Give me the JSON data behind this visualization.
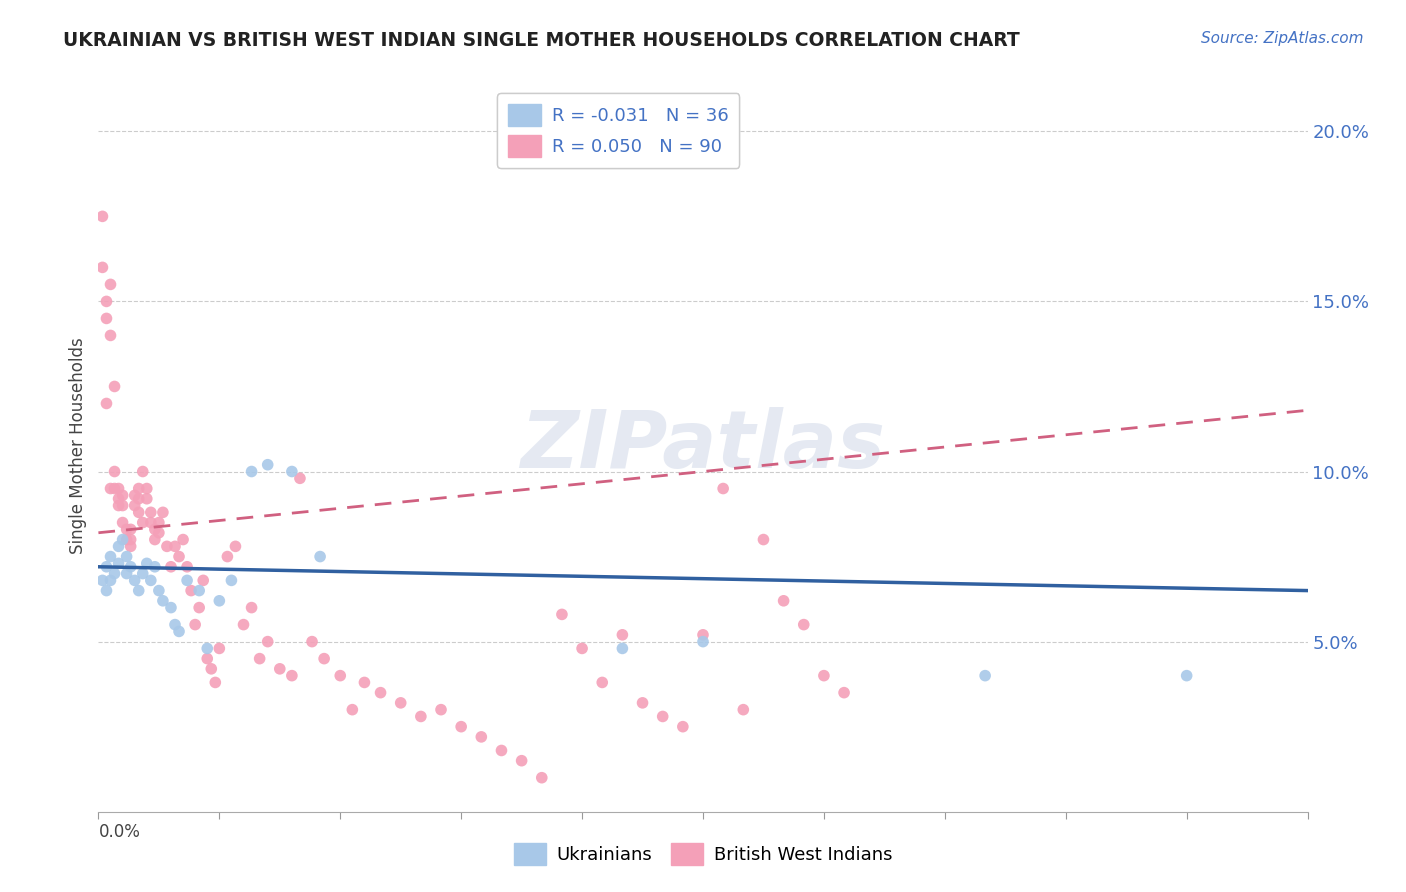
{
  "title": "UKRAINIAN VS BRITISH WEST INDIAN SINGLE MOTHER HOUSEHOLDS CORRELATION CHART",
  "source": "Source: ZipAtlas.com",
  "ylabel": "Single Mother Households",
  "watermark": "ZIPatlas",
  "legend_blue_label": "R = -0.031   N = 36",
  "legend_pink_label": "R = 0.050   N = 90",
  "legend_bottom_blue": "Ukrainians",
  "legend_bottom_pink": "British West Indians",
  "blue_color": "#a8c8e8",
  "pink_color": "#f4a0b8",
  "blue_line_color": "#3060a0",
  "pink_line_color": "#d06080",
  "xlim": [
    0.0,
    0.3
  ],
  "ylim": [
    0.0,
    0.215
  ],
  "right_yticks": [
    0.05,
    0.1,
    0.15,
    0.2
  ],
  "right_yticklabels": [
    "5.0%",
    "10.0%",
    "15.0%",
    "20.0%"
  ],
  "ukrainians_x": [
    0.001,
    0.002,
    0.002,
    0.003,
    0.003,
    0.004,
    0.005,
    0.005,
    0.006,
    0.007,
    0.007,
    0.008,
    0.009,
    0.01,
    0.011,
    0.012,
    0.013,
    0.014,
    0.015,
    0.016,
    0.018,
    0.019,
    0.02,
    0.022,
    0.025,
    0.027,
    0.03,
    0.033,
    0.038,
    0.042,
    0.048,
    0.055,
    0.13,
    0.15,
    0.22,
    0.27
  ],
  "ukrainians_y": [
    0.068,
    0.072,
    0.065,
    0.068,
    0.075,
    0.07,
    0.073,
    0.078,
    0.08,
    0.075,
    0.07,
    0.072,
    0.068,
    0.065,
    0.07,
    0.073,
    0.068,
    0.072,
    0.065,
    0.062,
    0.06,
    0.055,
    0.053,
    0.068,
    0.065,
    0.048,
    0.062,
    0.068,
    0.1,
    0.102,
    0.1,
    0.075,
    0.048,
    0.05,
    0.04,
    0.04
  ],
  "bwi_x": [
    0.001,
    0.001,
    0.002,
    0.002,
    0.002,
    0.003,
    0.003,
    0.003,
    0.004,
    0.004,
    0.004,
    0.005,
    0.005,
    0.005,
    0.006,
    0.006,
    0.006,
    0.007,
    0.007,
    0.008,
    0.008,
    0.008,
    0.009,
    0.009,
    0.01,
    0.01,
    0.01,
    0.011,
    0.011,
    0.012,
    0.012,
    0.013,
    0.013,
    0.014,
    0.014,
    0.015,
    0.015,
    0.016,
    0.017,
    0.018,
    0.019,
    0.02,
    0.021,
    0.022,
    0.023,
    0.024,
    0.025,
    0.026,
    0.027,
    0.028,
    0.029,
    0.03,
    0.032,
    0.034,
    0.036,
    0.038,
    0.04,
    0.042,
    0.045,
    0.048,
    0.05,
    0.053,
    0.056,
    0.06,
    0.063,
    0.066,
    0.07,
    0.075,
    0.08,
    0.085,
    0.09,
    0.095,
    0.1,
    0.105,
    0.11,
    0.115,
    0.12,
    0.125,
    0.13,
    0.135,
    0.14,
    0.145,
    0.15,
    0.155,
    0.16,
    0.165,
    0.17,
    0.175,
    0.18,
    0.185
  ],
  "bwi_y": [
    0.16,
    0.175,
    0.145,
    0.15,
    0.12,
    0.14,
    0.155,
    0.095,
    0.125,
    0.1,
    0.095,
    0.09,
    0.092,
    0.095,
    0.085,
    0.09,
    0.093,
    0.08,
    0.083,
    0.078,
    0.08,
    0.083,
    0.09,
    0.093,
    0.088,
    0.092,
    0.095,
    0.085,
    0.1,
    0.092,
    0.095,
    0.085,
    0.088,
    0.08,
    0.083,
    0.082,
    0.085,
    0.088,
    0.078,
    0.072,
    0.078,
    0.075,
    0.08,
    0.072,
    0.065,
    0.055,
    0.06,
    0.068,
    0.045,
    0.042,
    0.038,
    0.048,
    0.075,
    0.078,
    0.055,
    0.06,
    0.045,
    0.05,
    0.042,
    0.04,
    0.098,
    0.05,
    0.045,
    0.04,
    0.03,
    0.038,
    0.035,
    0.032,
    0.028,
    0.03,
    0.025,
    0.022,
    0.018,
    0.015,
    0.01,
    0.058,
    0.048,
    0.038,
    0.052,
    0.032,
    0.028,
    0.025,
    0.052,
    0.095,
    0.03,
    0.08,
    0.062,
    0.055,
    0.04,
    0.035
  ],
  "blue_trend_x": [
    0.0,
    0.3
  ],
  "blue_trend_y": [
    0.072,
    0.065
  ],
  "pink_trend_x": [
    0.0,
    0.3
  ],
  "pink_trend_y": [
    0.082,
    0.118
  ]
}
